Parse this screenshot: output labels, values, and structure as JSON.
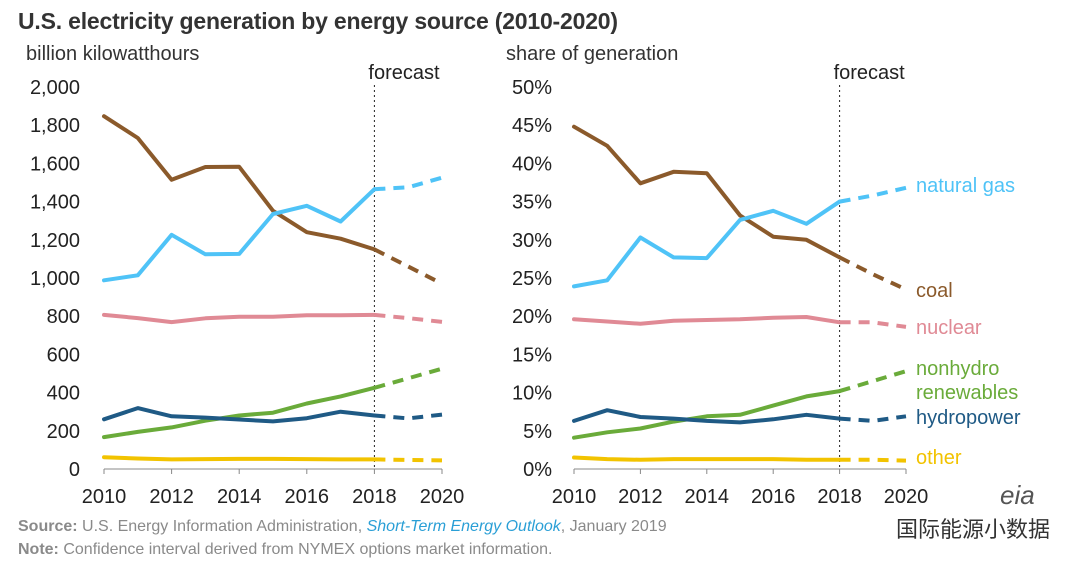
{
  "title": "U.S. electricity generation by energy source  (2010-2020)",
  "source": {
    "label": "Source:",
    "text1": " U.S. Energy Information Administration, ",
    "publication": "Short-Term Energy Outlook",
    "text2": ", January 2019"
  },
  "note": {
    "label": "Note:",
    "text": " Confidence interval derived from NYMEX options market information."
  },
  "watermark": "国际能源小数据",
  "logo": "eia",
  "colors": {
    "coal": "#8B5A2B",
    "natural_gas": "#4FC3F7",
    "nuclear": "#E08A95",
    "nonhydro": "#6AAB3A",
    "hydropower": "#1F5A85",
    "other": "#F2C300"
  },
  "chart_data": [
    {
      "type": "line",
      "ylabel": "billion kilowatthours",
      "forecast_label": "forecast",
      "forecast_start": 2018,
      "x": [
        2010,
        2011,
        2012,
        2013,
        2014,
        2015,
        2016,
        2017,
        2018,
        2019,
        2020
      ],
      "xticks": [
        2010,
        2012,
        2014,
        2016,
        2018,
        2020
      ],
      "ylim": [
        0,
        2000
      ],
      "yticks": [
        0,
        200,
        400,
        600,
        800,
        1000,
        1200,
        1400,
        1600,
        1800,
        2000
      ],
      "ytick_labels": [
        "0",
        "200",
        "400",
        "600",
        "800",
        "1,000",
        "1,200",
        "1,400",
        "1,600",
        "1,800",
        "2,000"
      ],
      "series": [
        {
          "name": "coal",
          "color_key": "coal",
          "values": [
            1847,
            1733,
            1514,
            1581,
            1582,
            1352,
            1240,
            1206,
            1150,
            1060,
            970
          ]
        },
        {
          "name": "natural gas",
          "color_key": "natural_gas",
          "values": [
            988,
            1014,
            1226,
            1124,
            1126,
            1335,
            1378,
            1296,
            1465,
            1475,
            1525
          ]
        },
        {
          "name": "nuclear",
          "color_key": "nuclear",
          "values": [
            807,
            790,
            769,
            789,
            797,
            797,
            805,
            805,
            807,
            790,
            770
          ]
        },
        {
          "name": "nonhydro renewables",
          "color_key": "nonhydro",
          "values": [
            167,
            194,
            218,
            253,
            280,
            295,
            343,
            380,
            425,
            475,
            525
          ]
        },
        {
          "name": "hydropower",
          "color_key": "hydropower",
          "values": [
            260,
            319,
            276,
            269,
            259,
            249,
            266,
            300,
            280,
            265,
            285
          ]
        },
        {
          "name": "other",
          "color_key": "other",
          "values": [
            62,
            55,
            50,
            52,
            53,
            53,
            52,
            50,
            50,
            47,
            45
          ]
        }
      ]
    },
    {
      "type": "line",
      "ylabel": "share of generation",
      "forecast_label": "forecast",
      "forecast_start": 2018,
      "x": [
        2010,
        2011,
        2012,
        2013,
        2014,
        2015,
        2016,
        2017,
        2018,
        2019,
        2020
      ],
      "xticks": [
        2010,
        2012,
        2014,
        2016,
        2018,
        2020
      ],
      "ylim": [
        0,
        50
      ],
      "yticks": [
        0,
        5,
        10,
        15,
        20,
        25,
        30,
        35,
        40,
        45,
        50
      ],
      "ytick_labels": [
        "0%",
        "5%",
        "10%",
        "15%",
        "20%",
        "25%",
        "30%",
        "35%",
        "40%",
        "45%",
        "50%"
      ],
      "series": [
        {
          "name": "coal",
          "label": "coal",
          "color_key": "coal",
          "values": [
            44.8,
            42.3,
            37.4,
            38.9,
            38.7,
            33.2,
            30.4,
            30.0,
            27.7,
            25.5,
            23.5
          ]
        },
        {
          "name": "natural gas",
          "label": "natural gas",
          "color_key": "natural_gas",
          "values": [
            23.9,
            24.7,
            30.3,
            27.7,
            27.6,
            32.6,
            33.8,
            32.1,
            35.0,
            35.8,
            36.8
          ]
        },
        {
          "name": "nuclear",
          "label": "nuclear",
          "color_key": "nuclear",
          "values": [
            19.6,
            19.3,
            19.0,
            19.4,
            19.5,
            19.6,
            19.8,
            19.9,
            19.2,
            19.2,
            18.6
          ]
        },
        {
          "name": "nonhydro renewables",
          "label": "nonhydro\nrenewables",
          "color_key": "nonhydro",
          "values": [
            4.1,
            4.8,
            5.3,
            6.2,
            6.9,
            7.1,
            8.3,
            9.5,
            10.2,
            11.5,
            12.8
          ]
        },
        {
          "name": "hydropower",
          "label": "hydropower",
          "color_key": "hydropower",
          "values": [
            6.3,
            7.7,
            6.8,
            6.6,
            6.3,
            6.1,
            6.5,
            7.1,
            6.6,
            6.3,
            6.9
          ]
        },
        {
          "name": "other",
          "label": "other",
          "color_key": "other",
          "values": [
            1.5,
            1.3,
            1.2,
            1.3,
            1.3,
            1.3,
            1.3,
            1.2,
            1.2,
            1.2,
            1.1
          ]
        }
      ]
    }
  ]
}
